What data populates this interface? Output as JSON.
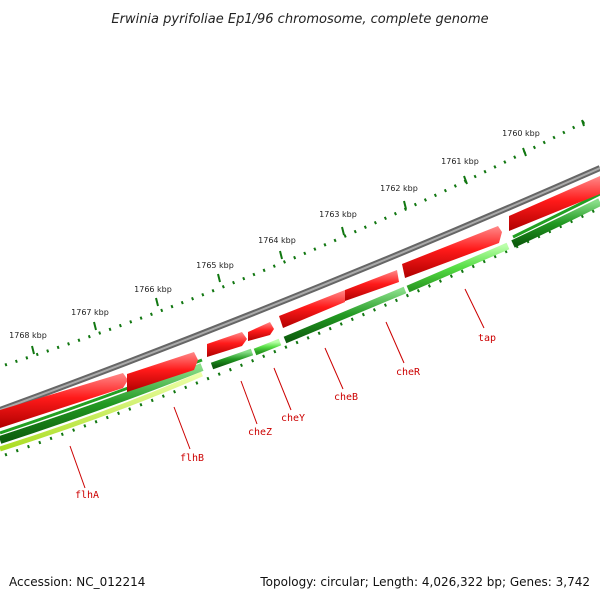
{
  "title": "Erwinia pyrifoliae Ep1/96 chromosome, complete genome",
  "footer": {
    "accession": "Accession: NC_012214",
    "summary": "Topology: circular; Length: 4,026,322 bp; Genes: 3,742"
  },
  "colors": {
    "backbone": "#888888",
    "forward_cds": "#ee1111",
    "reverse_cds": "#22a022",
    "reverse_cds_light": "#66dd44",
    "gc_track": "#ccff44",
    "ticks": "#117711",
    "gene_label": "#cc0000"
  },
  "scale_labels": [
    "1760 kbp",
    "1761 kbp",
    "1762 kbp",
    "1763 kbp",
    "1764 kbp",
    "1765 kbp",
    "1766 kbp",
    "1767 kbp",
    "1768 kbp"
  ],
  "genes": [
    "tap",
    "cheR",
    "cheB",
    "cheY",
    "cheZ",
    "flhB",
    "flhA"
  ]
}
